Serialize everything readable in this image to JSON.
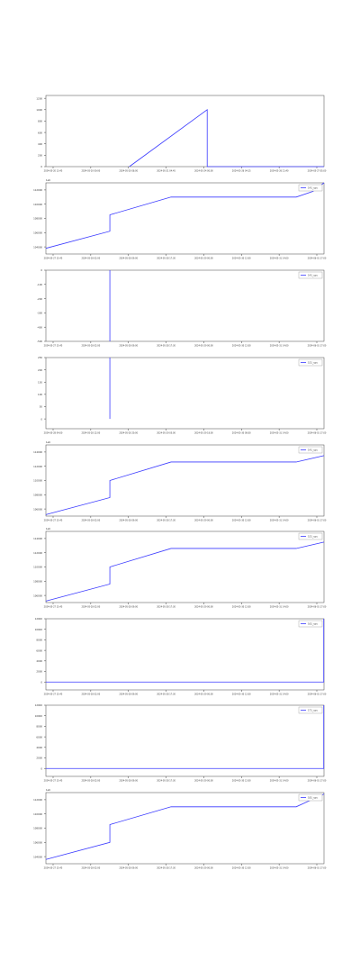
{
  "chart_data": [
    {
      "type": "line",
      "title": "",
      "xlabel": "",
      "ylabel": "",
      "offset_label": "",
      "legend": null,
      "x_ticks": [
        "2024-05-20 13:45",
        "2024-05-20 09:00",
        "2024-05-20 08:00",
        "2024-05-21 04:45",
        "2024-05-24 00:00",
        "2024-05-26 04:15",
        "2024-05-26 21:40",
        "2024-05-27 05:00"
      ],
      "y_ticks": [
        "0",
        "200",
        "400",
        "600",
        "800",
        "1000",
        "1200"
      ],
      "ylim": [
        0,
        1250
      ],
      "series": [
        {
          "color": "#3b3bff",
          "x": [
            0,
            0.3,
            0.58,
            0.58,
            1
          ],
          "y": [
            null,
            0,
            1000,
            0,
            0
          ]
        }
      ]
    },
    {
      "type": "line",
      "title": "",
      "xlabel": "",
      "ylabel": "",
      "offset_label": "1e6",
      "legend": {
        "entries": [
          "141_cpu"
        ],
        "position": "top-right"
      },
      "x_ticks": [
        "2024-05-27 15:45",
        "2024-05-28 02:00",
        "2024-05-28 09:00",
        "2024-05-28 17:30",
        "2024-05-29 00:00",
        "2024-05-30 12:00",
        "2024-05-31 14:00",
        "2024-06-01 17:00"
      ],
      "y_ticks": [
        "104000",
        "106000",
        "108000",
        "110000",
        "112000"
      ],
      "ylim": [
        103000,
        113000
      ],
      "series": [
        {
          "color": "#3b3bff",
          "x": [
            0,
            0.23,
            0.23,
            0.45,
            0.9,
            0.96,
            1
          ],
          "y": [
            103800,
            106200,
            108500,
            111000,
            111000,
            111800,
            113000
          ]
        }
      ]
    },
    {
      "type": "line",
      "title": "",
      "xlabel": "",
      "ylabel": "",
      "offset_label": "",
      "legend": {
        "entries": [
          "141_cpu"
        ],
        "position": "top-right"
      },
      "x_ticks": [
        "2024-05-27 15:45",
        "2024-05-28 02:00",
        "2024-05-28 09:00",
        "2024-05-28 17:30",
        "2024-05-29 00:00",
        "2024-05-30 12:00",
        "2024-05-31 14:00",
        "2024-06-01 17:00"
      ],
      "y_ticks": [
        "0",
        "-100",
        "-200",
        "-300",
        "-400",
        "-500"
      ],
      "ylim": [
        -500,
        0
      ],
      "series": [
        {
          "color": "#3b3bff",
          "x": [
            0.23,
            0.23
          ],
          "y": [
            0,
            -500
          ]
        }
      ]
    },
    {
      "type": "line",
      "title": "",
      "xlabel": "",
      "ylabel": "",
      "offset_label": "",
      "legend": {
        "entries": [
          "151_cpu"
        ],
        "position": "top-right"
      },
      "x_ticks": [
        "2024-05-28 04:00",
        "2024-05-28 12:00",
        "2024-05-28 20:00",
        "2024-05-29 05:00",
        "2024-05-29 18:00",
        "2024-05-30 08:00",
        "2024-05-31 14:00",
        "2024-06-01 17:00"
      ],
      "y_ticks": [
        "0",
        "50",
        "100",
        "150",
        "200",
        "250"
      ],
      "ylim": [
        -40,
        250
      ],
      "series": [
        {
          "color": "#3b3bff",
          "x": [
            0.23,
            0.23
          ],
          "y": [
            250,
            0
          ]
        }
      ]
    },
    {
      "type": "line",
      "title": "",
      "xlabel": "",
      "ylabel": "",
      "offset_label": "1e6",
      "legend": {
        "entries": [
          "141_cpu"
        ],
        "position": "top-right"
      },
      "x_ticks": [
        "2024-05-27 15:45",
        "2024-05-28 02:00",
        "2024-05-28 09:00",
        "2024-05-28 17:30",
        "2024-05-29 00:00",
        "2024-05-30 12:00",
        "2024-05-31 14:00",
        "2024-06-01 17:00"
      ],
      "y_ticks": [
        "106000",
        "108000",
        "110000",
        "112000",
        "114000"
      ],
      "ylim": [
        105000,
        115000
      ],
      "series": [
        {
          "color": "#3b3bff",
          "x": [
            0,
            0.23,
            0.23,
            0.45,
            0.9,
            1
          ],
          "y": [
            105200,
            107600,
            110000,
            112600,
            112600,
            113500
          ]
        }
      ]
    },
    {
      "type": "line",
      "title": "",
      "xlabel": "",
      "ylabel": "",
      "offset_label": "1e6",
      "legend": {
        "entries": [
          "151_cpu"
        ],
        "position": "top-right"
      },
      "x_ticks": [
        "2024-05-27 15:45",
        "2024-05-28 02:00",
        "2024-05-28 09:00",
        "2024-05-28 17:30",
        "2024-05-29 00:00",
        "2024-05-30 12:00",
        "2024-05-31 14:00",
        "2024-06-01 17:00"
      ],
      "y_ticks": [
        "106000",
        "108000",
        "110000",
        "112000",
        "114000"
      ],
      "ylim": [
        105000,
        115000
      ],
      "series": [
        {
          "color": "#3b3bff",
          "x": [
            0,
            0.23,
            0.23,
            0.45,
            0.9,
            1
          ],
          "y": [
            105200,
            107600,
            110000,
            112600,
            112600,
            113500
          ]
        }
      ]
    },
    {
      "type": "line",
      "title": "",
      "xlabel": "",
      "ylabel": "",
      "offset_label": "",
      "legend": {
        "entries": [
          "161_cpu"
        ],
        "position": "top-right"
      },
      "x_ticks": [
        "2024-05-27 15:45",
        "2024-05-28 02:00",
        "2024-05-28 09:00",
        "2024-05-28 17:30",
        "2024-05-29 00:00",
        "2024-05-30 12:00",
        "2024-05-31 14:00",
        "2024-06-01 17:00"
      ],
      "y_ticks": [
        "0",
        "2000",
        "4000",
        "6000",
        "8000",
        "10000",
        "12000"
      ],
      "ylim": [
        -1500,
        12000
      ],
      "series": [
        {
          "color": "#3b3bff",
          "x": [
            0,
            0.999,
            0.999
          ],
          "y": [
            0,
            0,
            12000
          ]
        }
      ]
    },
    {
      "type": "line",
      "title": "",
      "xlabel": "",
      "ylabel": "",
      "offset_label": "",
      "legend": {
        "entries": [
          "171_cpu"
        ],
        "position": "top-right"
      },
      "x_ticks": [
        "2024-05-27 15:45",
        "2024-05-28 02:00",
        "2024-05-28 09:00",
        "2024-05-28 17:30",
        "2024-05-29 00:00",
        "2024-05-30 12:00",
        "2024-05-31 14:00",
        "2024-06-01 17:00"
      ],
      "y_ticks": [
        "0",
        "2000",
        "4000",
        "6000",
        "8000",
        "10000",
        "12000"
      ],
      "ylim": [
        -1500,
        12000
      ],
      "series": [
        {
          "color": "#3b3bff",
          "x": [
            0,
            0.999,
            0.999
          ],
          "y": [
            0,
            0,
            12000
          ]
        }
      ]
    },
    {
      "type": "line",
      "title": "",
      "xlabel": "",
      "ylabel": "",
      "offset_label": "1e6",
      "legend": {
        "entries": [
          "181_cpu"
        ],
        "position": "top-right"
      },
      "x_ticks": [
        "2024-05-27 15:45",
        "2024-05-28 02:00",
        "2024-05-28 09:00",
        "2024-05-28 17:30",
        "2024-05-29 00:00",
        "2024-05-30 12:00",
        "2024-05-31 14:00",
        "2024-06-01 17:00"
      ],
      "y_ticks": [
        "104000",
        "106000",
        "108000",
        "110000",
        "112000"
      ],
      "ylim": [
        103000,
        113000
      ],
      "series": [
        {
          "color": "#3b3bff",
          "x": [
            0,
            0.23,
            0.23,
            0.45,
            0.9,
            1
          ],
          "y": [
            103600,
            106000,
            108500,
            111000,
            111000,
            112800
          ]
        }
      ]
    }
  ]
}
